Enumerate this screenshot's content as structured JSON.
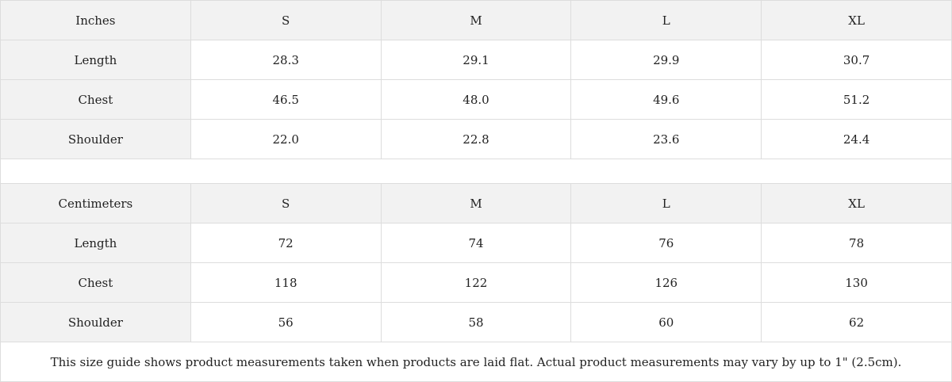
{
  "tables": [
    {
      "unit": "Inches",
      "sizes": [
        "S",
        "M",
        "L",
        "XL"
      ],
      "rows": [
        {
          "label": "Length",
          "values": [
            "28.3",
            "29.1",
            "29.9",
            "30.7"
          ]
        },
        {
          "label": "Chest",
          "values": [
            "46.5",
            "48.0",
            "49.6",
            "51.2"
          ]
        },
        {
          "label": "Shoulder",
          "values": [
            "22.0",
            "22.8",
            "23.6",
            "24.4"
          ]
        }
      ]
    },
    {
      "unit": "Centimeters",
      "sizes": [
        "S",
        "M",
        "L",
        "XL"
      ],
      "rows": [
        {
          "label": "Length",
          "values": [
            "72",
            "74",
            "76",
            "78"
          ]
        },
        {
          "label": "Chest",
          "values": [
            "118",
            "122",
            "126",
            "130"
          ]
        },
        {
          "label": "Shoulder",
          "values": [
            "56",
            "58",
            "60",
            "62"
          ]
        }
      ]
    }
  ],
  "note": "This size guide shows product measurements taken when products are laid flat.  Actual product measurements may vary by up to 1\" (2.5cm)."
}
